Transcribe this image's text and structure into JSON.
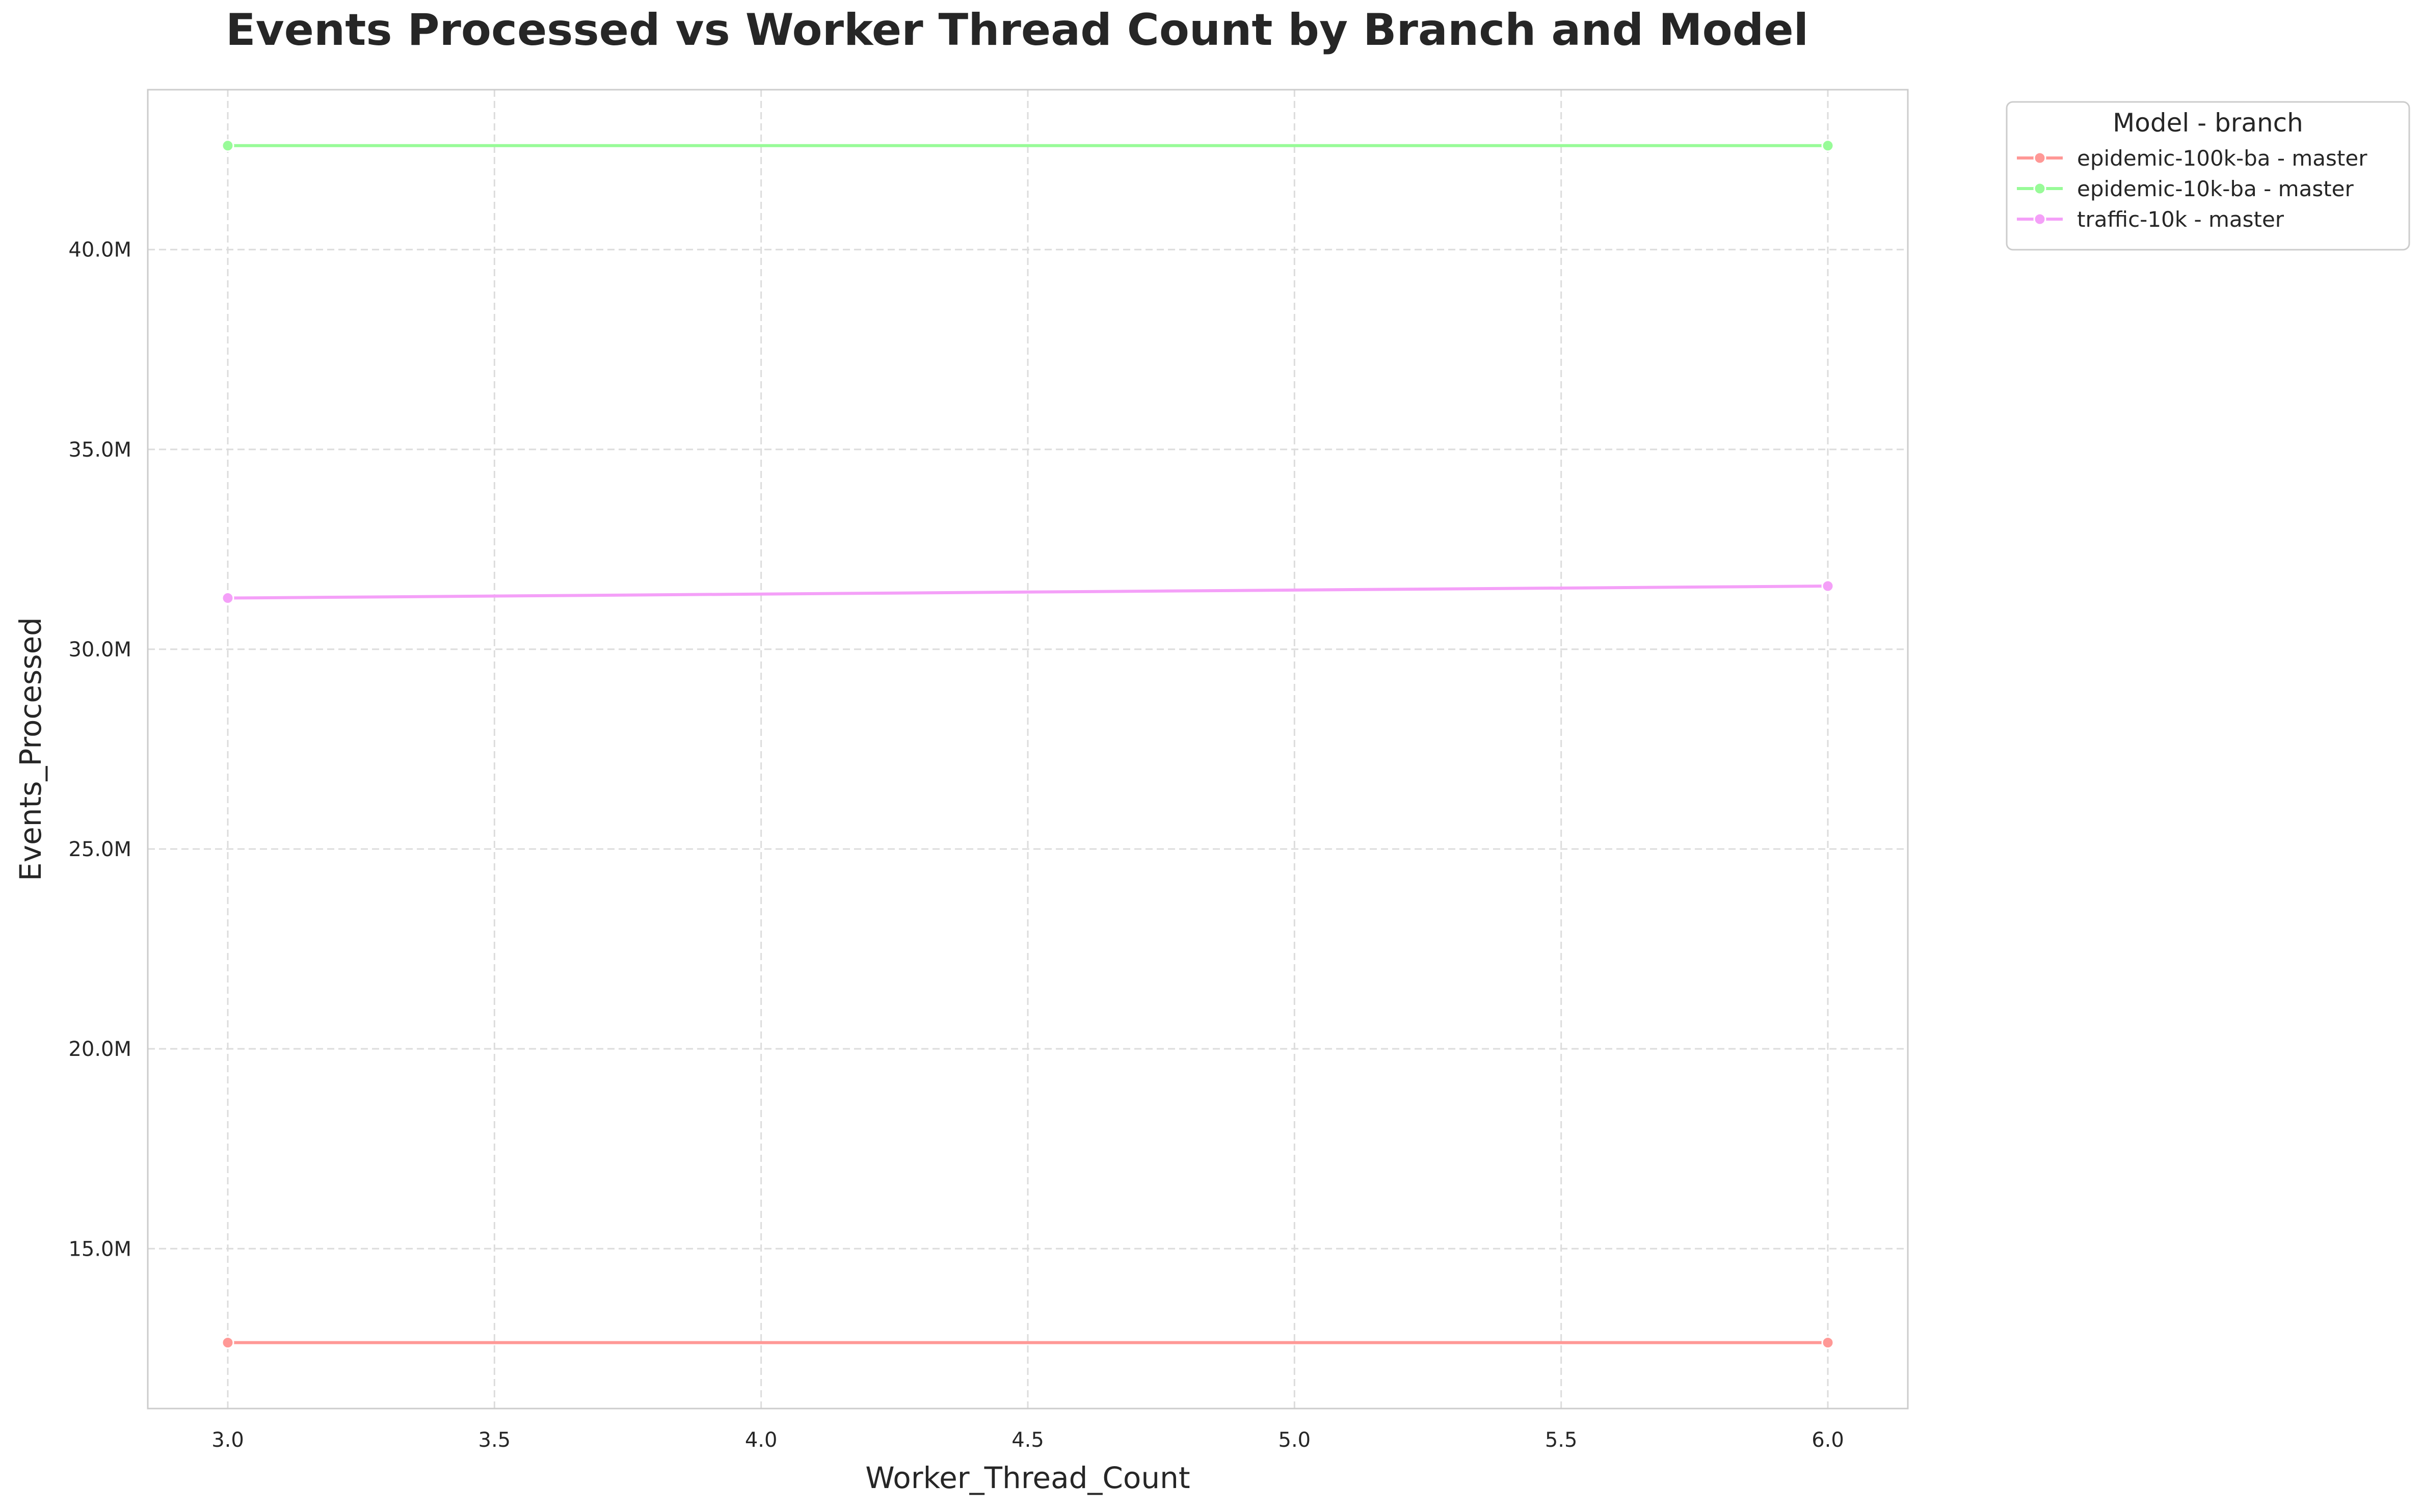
{
  "chart_data": {
    "type": "line",
    "title": "Events Processed vs Worker Thread Count by Branch and Model",
    "xlabel": "Worker_Thread_Count",
    "ylabel": "Events_Processed",
    "xlim": [
      2.85,
      6.15
    ],
    "ylim": [
      11.0,
      44.0
    ],
    "x_ticks": [
      3.0,
      3.5,
      4.0,
      4.5,
      5.0,
      5.5,
      6.0
    ],
    "x_tick_labels": [
      "3.0",
      "3.5",
      "4.0",
      "4.5",
      "5.0",
      "5.5",
      "6.0"
    ],
    "y_ticks": [
      15.0,
      20.0,
      25.0,
      30.0,
      35.0,
      40.0
    ],
    "y_tick_labels": [
      "15.0M",
      "20.0M",
      "25.0M",
      "30.0M",
      "35.0M",
      "40.0M"
    ],
    "y_units": "M",
    "grid": true,
    "legend_title": "Model - branch",
    "legend_position": "outside-top-right",
    "series": [
      {
        "name": "epidemic-100k-ba - master",
        "color": "#ff9896",
        "x": [
          3,
          6
        ],
        "values": [
          12.65,
          12.65
        ]
      },
      {
        "name": "epidemic-10k-ba - master",
        "color": "#98fb98",
        "x": [
          3,
          6
        ],
        "values": [
          42.6,
          42.6
        ]
      },
      {
        "name": "traffic-10k - master",
        "color": "#f4a0f8",
        "x": [
          3,
          6
        ],
        "values": [
          31.28,
          31.58
        ]
      }
    ]
  }
}
